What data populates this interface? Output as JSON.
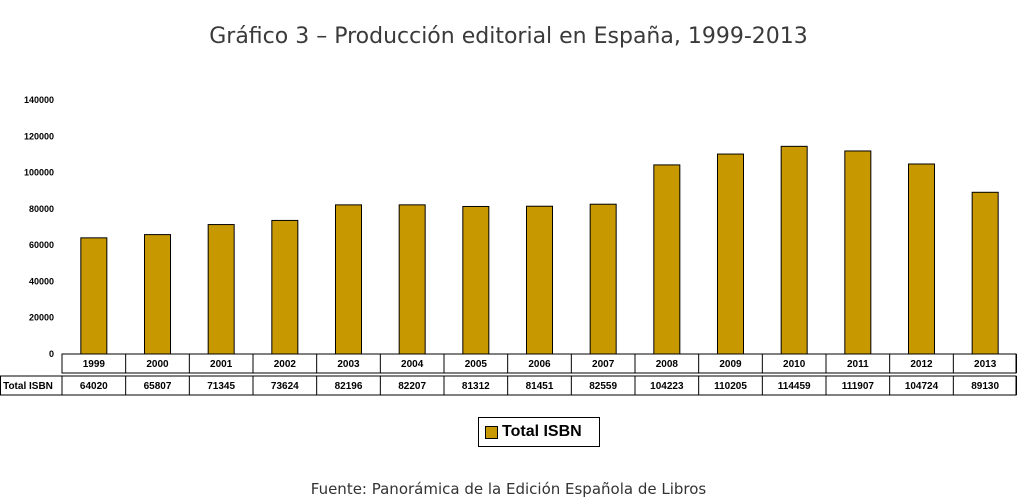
{
  "chart_data": {
    "type": "bar",
    "title": "Gráfico 3 – Producción editorial en España, 1999-2013",
    "source": "Fuente: Panorámica de la Edición Española de Libros",
    "categories": [
      "1999",
      "2000",
      "2001",
      "2002",
      "2003",
      "2004",
      "2005",
      "2006",
      "2007",
      "2008",
      "2009",
      "2010",
      "2011",
      "2012",
      "2013"
    ],
    "series": [
      {
        "name": "Total ISBN",
        "color": "#c89800",
        "values": [
          64020,
          65807,
          71345,
          73624,
          82196,
          82207,
          81312,
          81451,
          82559,
          104223,
          110205,
          114459,
          111907,
          104724,
          89130
        ]
      }
    ],
    "table_row_label": "Total ISBN",
    "y_ticks": [
      "0",
      "20000",
      "40000",
      "60000",
      "80000",
      "100000",
      "120000",
      "140000"
    ],
    "ylim": [
      0,
      140000
    ],
    "grid": false,
    "legend_position": "bottom"
  }
}
